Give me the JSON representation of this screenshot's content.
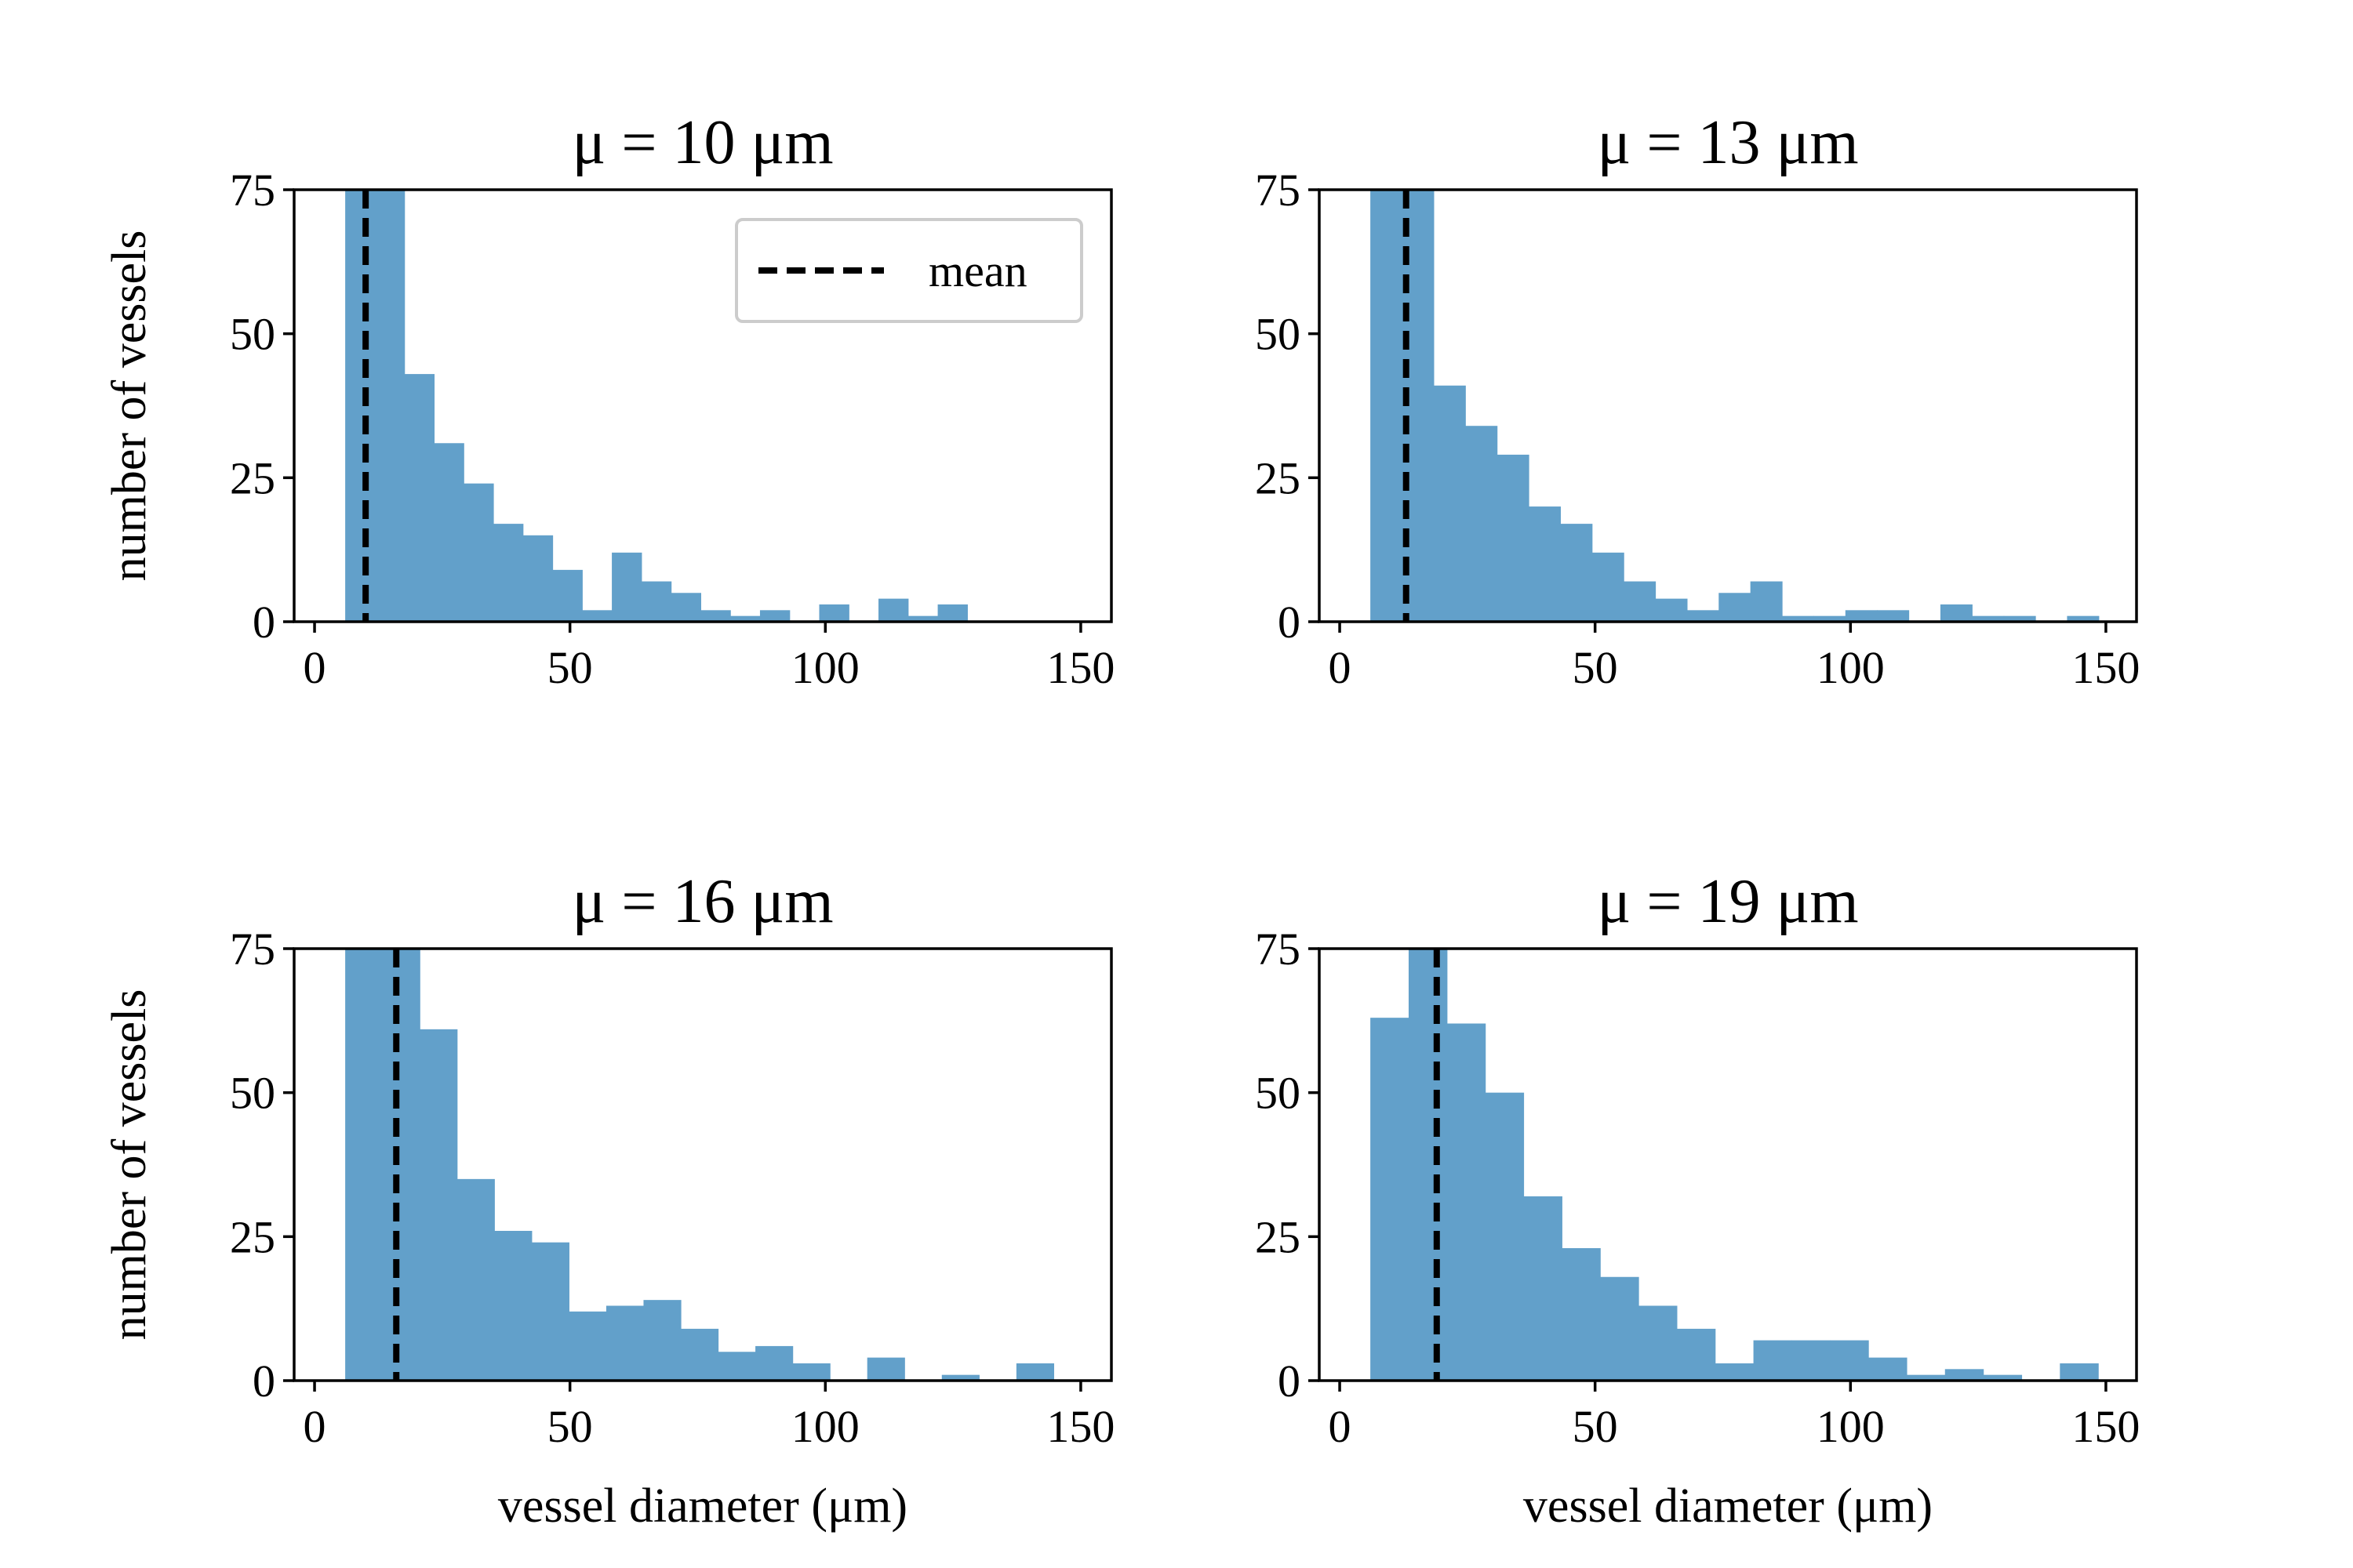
{
  "figure": {
    "x_axis_label": "vessel diameter (μm)",
    "y_axis_label": "number of vessels",
    "legend_label": "mean",
    "bar_color": "#62a0ca",
    "mean_line_color": "#000000"
  },
  "chart_data": [
    {
      "type": "bar",
      "title": "μ = 10 μm",
      "xlabel": "",
      "ylabel": "number of vessels",
      "xlim": [
        -4,
        156
      ],
      "ylim": [
        0,
        75
      ],
      "xticks": [
        0,
        50,
        100,
        150
      ],
      "yticks": [
        0,
        25,
        50,
        75
      ],
      "bin_start": 6,
      "bin_width": 5.8,
      "values": [
        75,
        75,
        43,
        31,
        24,
        17,
        15,
        9,
        2,
        12,
        7,
        5,
        2,
        1,
        2,
        0,
        3,
        0,
        4,
        1,
        3
      ],
      "mean": 10,
      "legend": "top-right"
    },
    {
      "type": "bar",
      "title": "μ = 13 μm",
      "xlabel": "",
      "ylabel": "",
      "xlim": [
        -4,
        156
      ],
      "ylim": [
        0,
        75
      ],
      "xticks": [
        0,
        50,
        100,
        150
      ],
      "yticks": [
        0,
        25,
        50,
        75
      ],
      "bin_start": 6,
      "bin_width": 6.2,
      "values": [
        75,
        75,
        41,
        34,
        29,
        20,
        17,
        12,
        7,
        4,
        2,
        5,
        7,
        1,
        1,
        2,
        2,
        0,
        3,
        1,
        1,
        0,
        1
      ],
      "mean": 13
    },
    {
      "type": "bar",
      "title": "μ = 16 μm",
      "xlabel": "vessel diameter (μm)",
      "ylabel": "number of vessels",
      "xlim": [
        -4,
        156
      ],
      "ylim": [
        0,
        75
      ],
      "xticks": [
        0,
        50,
        100,
        150
      ],
      "yticks": [
        0,
        25,
        50,
        75
      ],
      "bin_start": 6,
      "bin_width": 7.3,
      "values": [
        75,
        75,
        61,
        35,
        26,
        24,
        12,
        13,
        14,
        9,
        5,
        6,
        3,
        0,
        4,
        0,
        1,
        0,
        3
      ],
      "mean": 16
    },
    {
      "type": "bar",
      "title": "μ = 19 μm",
      "xlabel": "vessel diameter (μm)",
      "ylabel": "",
      "xlim": [
        -4,
        156
      ],
      "ylim": [
        0,
        75
      ],
      "xticks": [
        0,
        50,
        100,
        150
      ],
      "yticks": [
        0,
        25,
        50,
        75
      ],
      "bin_start": 6,
      "bin_width": 7.5,
      "values": [
        63,
        75,
        62,
        50,
        32,
        23,
        18,
        13,
        9,
        3,
        7,
        7,
        7,
        4,
        1,
        2,
        1,
        0,
        3
      ],
      "mean": 19
    }
  ]
}
